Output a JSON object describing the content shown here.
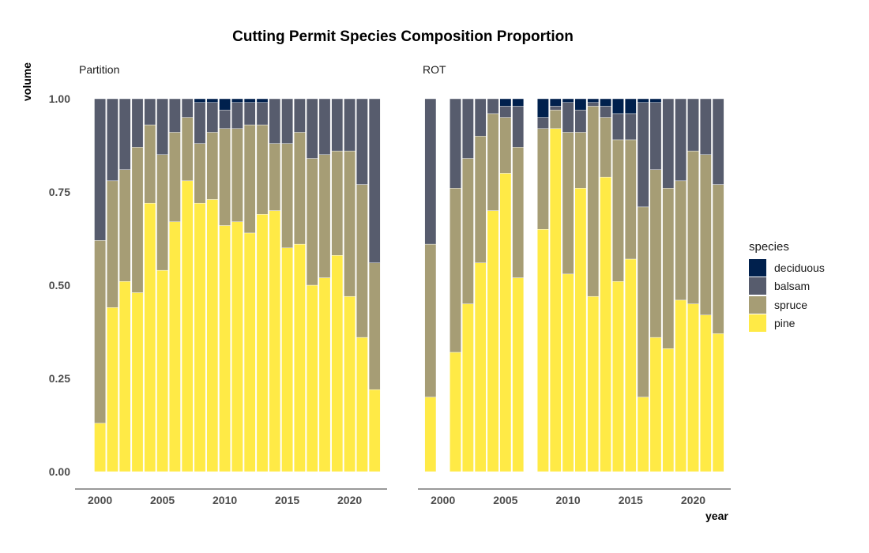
{
  "chart_data": {
    "type": "bar",
    "stacked": true,
    "title": "Cutting Permit Species Composition Proportion",
    "xlabel": "year",
    "ylabel": "volume",
    "ylim": [
      0,
      1
    ],
    "xlim": [
      1998,
      2023
    ],
    "x_ticks": [
      2000,
      2005,
      2010,
      2015,
      2020
    ],
    "y_ticks": [
      "0.00",
      "0.25",
      "0.50",
      "0.75",
      "1.00"
    ],
    "legend_title": "species",
    "legend_position": "right",
    "species": [
      "deciduous",
      "balsam",
      "spruce",
      "pine"
    ],
    "colors": {
      "deciduous": "#00204D",
      "balsam": "#575C6D",
      "spruce": "#A69D75",
      "pine": "#FFEA46"
    },
    "panels": [
      {
        "label": "Partition",
        "years": [
          2000,
          2001,
          2002,
          2003,
          2004,
          2005,
          2006,
          2007,
          2008,
          2009,
          2010,
          2011,
          2012,
          2013,
          2014,
          2015,
          2016,
          2017,
          2018,
          2019,
          2020,
          2021,
          2022
        ],
        "pine": [
          0.13,
          0.44,
          0.51,
          0.48,
          0.72,
          0.54,
          0.67,
          0.78,
          0.72,
          0.73,
          0.66,
          0.67,
          0.64,
          0.69,
          0.7,
          0.6,
          0.61,
          0.5,
          0.52,
          0.58,
          0.47,
          0.36,
          0.22
        ],
        "spruce": [
          0.49,
          0.34,
          0.3,
          0.39,
          0.21,
          0.31,
          0.24,
          0.17,
          0.16,
          0.18,
          0.26,
          0.25,
          0.29,
          0.24,
          0.18,
          0.28,
          0.3,
          0.34,
          0.33,
          0.28,
          0.39,
          0.41,
          0.34
        ],
        "balsam": [
          0.38,
          0.22,
          0.19,
          0.13,
          0.07,
          0.15,
          0.09,
          0.05,
          0.11,
          0.08,
          0.05,
          0.07,
          0.06,
          0.06,
          0.12,
          0.12,
          0.09,
          0.16,
          0.15,
          0.14,
          0.14,
          0.23,
          0.44
        ],
        "deciduous": [
          0.0,
          0.0,
          0.0,
          0.0,
          0.0,
          0.0,
          0.0,
          0.0,
          0.01,
          0.01,
          0.03,
          0.01,
          0.01,
          0.01,
          0.0,
          0.0,
          0.0,
          0.0,
          0.0,
          0.0,
          0.0,
          0.0,
          0.0
        ]
      },
      {
        "label": "ROT",
        "years": [
          1999,
          2001,
          2002,
          2003,
          2004,
          2005,
          2006,
          2008,
          2009,
          2010,
          2011,
          2012,
          2013,
          2014,
          2015,
          2016,
          2017,
          2018,
          2019,
          2020,
          2021,
          2022
        ],
        "pine": [
          0.2,
          0.32,
          0.45,
          0.56,
          0.7,
          0.8,
          0.52,
          0.65,
          0.92,
          0.53,
          0.76,
          0.47,
          0.79,
          0.51,
          0.57,
          0.2,
          0.36,
          0.33,
          0.46,
          0.45,
          0.42,
          0.37
        ],
        "spruce": [
          0.41,
          0.44,
          0.39,
          0.34,
          0.26,
          0.15,
          0.35,
          0.27,
          0.05,
          0.38,
          0.15,
          0.51,
          0.16,
          0.38,
          0.32,
          0.51,
          0.45,
          0.43,
          0.32,
          0.41,
          0.43,
          0.4
        ],
        "balsam": [
          0.39,
          0.24,
          0.16,
          0.1,
          0.04,
          0.03,
          0.11,
          0.03,
          0.01,
          0.08,
          0.06,
          0.01,
          0.03,
          0.07,
          0.07,
          0.28,
          0.18,
          0.24,
          0.22,
          0.14,
          0.15,
          0.23
        ],
        "deciduous": [
          0.0,
          0.0,
          0.0,
          0.0,
          0.0,
          0.02,
          0.02,
          0.05,
          0.02,
          0.01,
          0.03,
          0.01,
          0.02,
          0.04,
          0.04,
          0.01,
          0.01,
          0.0,
          0.0,
          0.0,
          0.0,
          0.0
        ]
      }
    ]
  }
}
